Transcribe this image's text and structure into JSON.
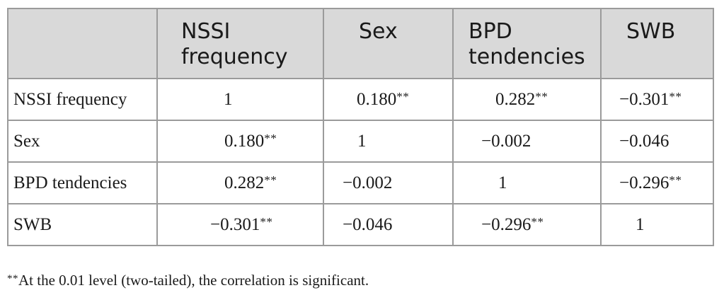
{
  "table": {
    "headers": [
      {
        "line1": "",
        "line2": ""
      },
      {
        "line1": "NSSI",
        "line2": "frequency"
      },
      {
        "line1": "Sex",
        "line2": ""
      },
      {
        "line1": "BPD",
        "line2": "tendencies"
      },
      {
        "line1": "SWB",
        "line2": ""
      }
    ],
    "rows": [
      {
        "label": "NSSI frequency",
        "cells": [
          {
            "value": "1",
            "stars": ""
          },
          {
            "value": "0.180",
            "stars": "**"
          },
          {
            "value": "0.282",
            "stars": "**"
          },
          {
            "value": "−0.301",
            "stars": "**"
          }
        ]
      },
      {
        "label": "Sex",
        "cells": [
          {
            "value": "0.180",
            "stars": "**"
          },
          {
            "value": "1",
            "stars": ""
          },
          {
            "value": "−0.002",
            "stars": ""
          },
          {
            "value": "−0.046",
            "stars": ""
          }
        ]
      },
      {
        "label": "BPD tendencies",
        "cells": [
          {
            "value": "0.282",
            "stars": "**"
          },
          {
            "value": "−0.002",
            "stars": ""
          },
          {
            "value": "1",
            "stars": ""
          },
          {
            "value": "−0.296",
            "stars": "**"
          }
        ]
      },
      {
        "label": "SWB",
        "cells": [
          {
            "value": "−0.301",
            "stars": "**"
          },
          {
            "value": "−0.046",
            "stars": ""
          },
          {
            "value": "−0.296",
            "stars": "**"
          },
          {
            "value": "1",
            "stars": ""
          }
        ]
      }
    ]
  },
  "footnote": {
    "stars": "**",
    "text": "At the 0.01 level (two-tailed), the correlation is significant."
  },
  "colors": {
    "header_background": "#d9d9d9",
    "border": "#9b9b9b",
    "text": "#1a1a1a"
  }
}
